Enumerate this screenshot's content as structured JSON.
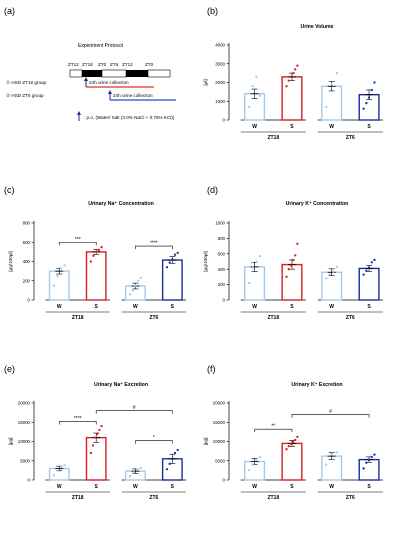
{
  "panel_labels": {
    "a": "(a)",
    "b": "(b)",
    "c": "(c)",
    "d": "(d)",
    "e": "(e)",
    "f": "(f)"
  },
  "protocol": {
    "title": "Experiment Protocol",
    "timeline_labels": [
      "ZT12",
      "ZT18",
      "ZT0",
      "ZT6",
      "ZT12",
      "ZT0"
    ],
    "group1_label": "① HSD ZT18 group",
    "group2_label": "② HSD ZT6 group",
    "collection_label_1": "24h  urine collection",
    "collection_label_2": "24h  urine collection",
    "legend_text": ": p.o. (Water/ Salt (3.0% NaCl + 0.75% KCl))",
    "colors": {
      "group1": "#e03030",
      "group2": "#2050c0",
      "arrow": "#1a2a8a"
    }
  },
  "chart_data": [
    {
      "id": "b",
      "type": "bar",
      "title": "Urine Volume",
      "ylabel": "[μl]",
      "ylim": [
        0,
        4000
      ],
      "yticks": [
        0,
        1000,
        2000,
        3000,
        4000
      ],
      "groups": [
        {
          "name": "ZT18",
          "bars": [
            {
              "label": "W",
              "value": 1400,
              "err": 250,
              "color": "#a8c8e8",
              "dots": [
                700,
                1800,
                2300,
                1300
              ]
            },
            {
              "label": "S",
              "value": 2300,
              "err": 200,
              "color": "#d42020",
              "dots": [
                1800,
                2100,
                2300,
                2500,
                2700,
                2900
              ]
            }
          ]
        },
        {
          "name": "ZT6",
          "bars": [
            {
              "label": "W",
              "value": 1800,
              "err": 250,
              "color": "#a8c8e8",
              "dots": [
                700,
                1900,
                2500
              ]
            },
            {
              "label": "S",
              "value": 1350,
              "err": 250,
              "color": "#1a2aa0",
              "dots": [
                600,
                900,
                1200,
                1600,
                2000
              ]
            }
          ]
        }
      ],
      "brackets": []
    },
    {
      "id": "c",
      "type": "bar",
      "title": "Urinary Na⁺ Concentration",
      "ylabel": "[μg/100μl]",
      "ylim": [
        0,
        800
      ],
      "yticks": [
        0,
        200,
        400,
        600,
        800
      ],
      "groups": [
        {
          "name": "ZT18",
          "bars": [
            {
              "label": "W",
              "value": 300,
              "err": 30,
              "color": "#a8c8e8",
              "dots": [
                150,
                250,
                330,
                360
              ]
            },
            {
              "label": "S",
              "value": 500,
              "err": 25,
              "color": "#d42020",
              "dots": [
                400,
                460,
                500,
                520,
                550
              ]
            }
          ]
        },
        {
          "name": "ZT6",
          "bars": [
            {
              "label": "W",
              "value": 145,
              "err": 30,
              "color": "#a8c8e8",
              "dots": [
                60,
                100,
                150,
                200,
                230
              ]
            },
            {
              "label": "S",
              "value": 415,
              "err": 35,
              "color": "#1a2aa0",
              "dots": [
                340,
                390,
                420,
                470,
                490
              ]
            }
          ]
        }
      ],
      "brackets": [
        {
          "from_group": 0,
          "from_bar": 0,
          "to_group": 0,
          "to_bar": 1,
          "y": 600,
          "label": "***"
        },
        {
          "from_group": 1,
          "from_bar": 0,
          "to_group": 1,
          "to_bar": 1,
          "y": 560,
          "label": "****"
        }
      ]
    },
    {
      "id": "d",
      "type": "bar",
      "title": "Urinary K⁺ Concentration",
      "ylabel": "[μg/100μl]",
      "ylim": [
        0,
        1000
      ],
      "yticks": [
        0,
        200,
        400,
        600,
        800,
        1000
      ],
      "groups": [
        {
          "name": "ZT18",
          "bars": [
            {
              "label": "W",
              "value": 430,
              "err": 60,
              "color": "#a8c8e8",
              "dots": [
                220,
                420,
                500,
                570
              ]
            },
            {
              "label": "S",
              "value": 460,
              "err": 60,
              "color": "#d42020",
              "dots": [
                300,
                400,
                450,
                520,
                580,
                730
              ]
            }
          ]
        },
        {
          "name": "ZT6",
          "bars": [
            {
              "label": "W",
              "value": 360,
              "err": 45,
              "color": "#a8c8e8",
              "dots": [
                280,
                330,
                370,
                430
              ]
            },
            {
              "label": "S",
              "value": 410,
              "err": 40,
              "color": "#1a2aa0",
              "dots": [
                330,
                380,
                420,
                490,
                520
              ]
            }
          ]
        }
      ],
      "brackets": []
    },
    {
      "id": "e",
      "type": "bar",
      "title": "Urinary Na⁺ Excretion",
      "ylabel": "[μg]",
      "ylim": [
        0,
        20000
      ],
      "yticks": [
        0,
        5000,
        10000,
        15000,
        20000
      ],
      "groups": [
        {
          "name": "ZT18",
          "bars": [
            {
              "label": "W",
              "value": 3000,
              "err": 600,
              "color": "#a8c8e8",
              "dots": [
                1200,
                2400,
                3400,
                3800
              ]
            },
            {
              "label": "S",
              "value": 11000,
              "err": 1200,
              "color": "#d42020",
              "dots": [
                7000,
                9000,
                11000,
                12000,
                13000,
                14000
              ]
            }
          ]
        },
        {
          "name": "ZT6",
          "bars": [
            {
              "label": "W",
              "value": 2300,
              "err": 600,
              "color": "#a8c8e8",
              "dots": [
                1000,
                2000,
                2800,
                3100
              ]
            },
            {
              "label": "S",
              "value": 5500,
              "err": 1200,
              "color": "#1a2aa0",
              "dots": [
                2800,
                4200,
                5500,
                7000,
                7800
              ]
            }
          ]
        }
      ],
      "brackets": [
        {
          "from_group": 0,
          "from_bar": 0,
          "to_group": 0,
          "to_bar": 1,
          "y": 15200,
          "label": "****"
        },
        {
          "from_group": 1,
          "from_bar": 0,
          "to_group": 1,
          "to_bar": 1,
          "y": 10200,
          "label": "*"
        },
        {
          "from_group": 0,
          "from_bar": 1,
          "to_group": 1,
          "to_bar": 1,
          "y": 18000,
          "label": "#"
        }
      ]
    },
    {
      "id": "f",
      "type": "bar",
      "title": "Urinary K⁺ Excretion",
      "ylabel": "[μg]",
      "ylim": [
        0,
        20000
      ],
      "yticks": [
        0,
        5000,
        10000,
        15000,
        20000
      ],
      "groups": [
        {
          "name": "ZT18",
          "bars": [
            {
              "label": "W",
              "value": 4800,
              "err": 800,
              "color": "#a8c8e8",
              "dots": [
                2600,
                4000,
                5300,
                5900
              ]
            },
            {
              "label": "S",
              "value": 9500,
              "err": 800,
              "color": "#d42020",
              "dots": [
                8000,
                8800,
                9400,
                9900,
                10400,
                11200
              ]
            }
          ]
        },
        {
          "name": "ZT6",
          "bars": [
            {
              "label": "W",
              "value": 6200,
              "err": 900,
              "color": "#a8c8e8",
              "dots": [
                4000,
                6600,
                7200
              ]
            },
            {
              "label": "S",
              "value": 5300,
              "err": 700,
              "color": "#1a2aa0",
              "dots": [
                3000,
                4500,
                5200,
                6000,
                6600
              ]
            }
          ]
        }
      ],
      "brackets": [
        {
          "from_group": 0,
          "from_bar": 0,
          "to_group": 0,
          "to_bar": 1,
          "y": 13200,
          "label": "**"
        },
        {
          "from_group": 0,
          "from_bar": 1,
          "to_group": 1,
          "to_bar": 1,
          "y": 17000,
          "label": "#"
        }
      ]
    }
  ]
}
